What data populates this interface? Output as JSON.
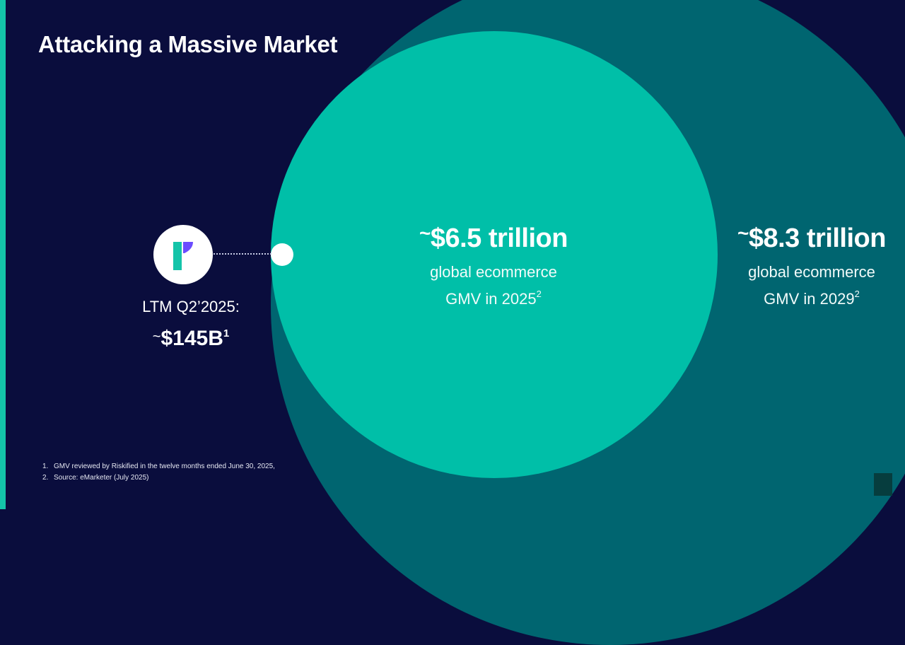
{
  "slide": {
    "title": "Attacking a Massive Market"
  },
  "riskified": {
    "label": "LTM Q2’2025:",
    "value": "$145B",
    "tilde": "~",
    "footnote_ref": "1"
  },
  "market_2025": {
    "tilde": "~",
    "value": "$6.5 trillion",
    "line1": "global ecommerce",
    "line2": "GMV in 2025",
    "footnote_ref": "2"
  },
  "market_2029": {
    "tilde": "~",
    "value": "$8.3 trillion",
    "line1": "global ecommerce",
    "line2": "GMV in 2029",
    "footnote_ref": "2"
  },
  "footnotes": [
    {
      "num": "1.",
      "text": "GMV reviewed by Riskified in the twelve months ended June 30, 2025,"
    },
    {
      "num": "2.",
      "text": "Source: eMarketer (July 2025)"
    }
  ],
  "colors": {
    "background": "#0a0d3d",
    "accent": "#14c4a9",
    "outer_circle": "#006570",
    "inner_circle": "#00bfa8",
    "logo_green": "#14c4a9",
    "logo_purple": "#6b4cff"
  },
  "icons": {
    "logo": "riskified-logo"
  }
}
